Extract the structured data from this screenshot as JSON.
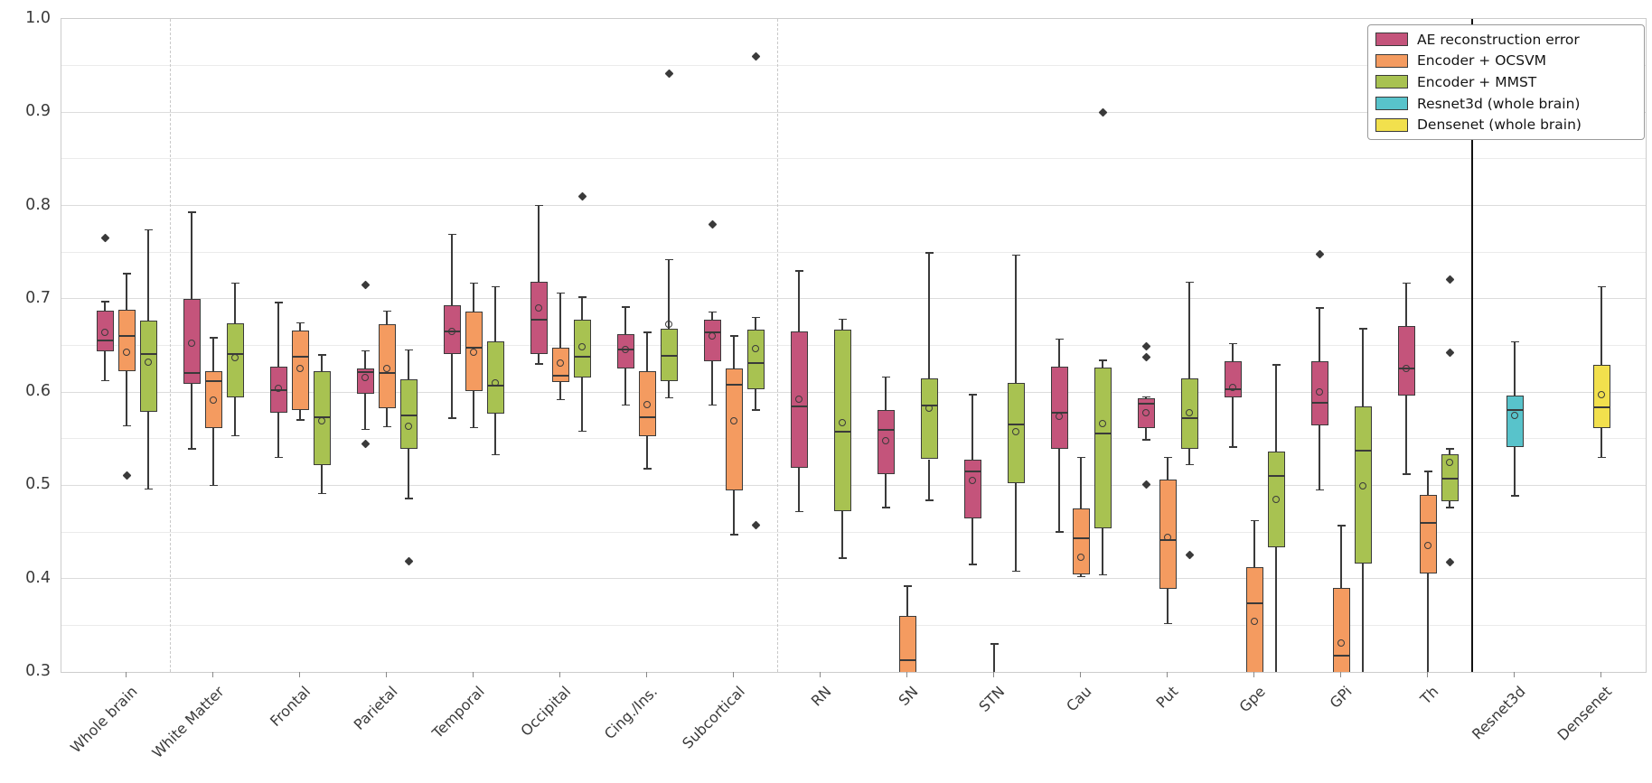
{
  "chart_data": {
    "type": "boxplot",
    "title": "",
    "xlabel": "",
    "ylabel": "",
    "ylim": [
      0.3,
      1.0
    ],
    "yticks": [
      "1.0",
      "0.9",
      "0.8",
      "0.7",
      "0.6",
      "0.5",
      "0.4",
      "0.3"
    ],
    "ytick_values": [
      1.0,
      0.9,
      0.8,
      0.7,
      0.6,
      0.5,
      0.4,
      0.3
    ],
    "minor_grid_step": 0.05,
    "grid": "horizontal",
    "legend_position": "upper right",
    "legend": [
      {
        "key": "ae",
        "label": "AE reconstruction error",
        "color": "#c4547b"
      },
      {
        "key": "ocsvm",
        "label": "Encoder + OCSVM",
        "color": "#f49b60"
      },
      {
        "key": "mmst",
        "label": "Encoder + MMST",
        "color": "#a8c251"
      },
      {
        "key": "resnet",
        "label": "Resnet3d (whole brain)",
        "color": "#58c3cb"
      },
      {
        "key": "densenet",
        "label": "Densenet (whole brain)",
        "color": "#f2e04d"
      }
    ],
    "separators": [
      {
        "after_index": 0,
        "style": "dashed"
      },
      {
        "after_index": 7,
        "style": "dashed"
      },
      {
        "after_index": 15,
        "style": "solid"
      }
    ],
    "categories": [
      "Whole brain",
      "White Matter",
      "Frontal",
      "Parietal",
      "Temporal",
      "Occipital",
      "Cing./Ins.",
      "Subcortical",
      "RN",
      "SN",
      "STN",
      "Cau",
      "Put",
      "Gpe",
      "GPi",
      "Th",
      "Resnet3d",
      "Densenet"
    ],
    "groups": [
      {
        "label": "Whole brain",
        "boxes": [
          {
            "series": "ae",
            "whislo": 0.612,
            "q1": 0.644,
            "med": 0.655,
            "q3": 0.687,
            "whishi": 0.697,
            "mean": 0.664,
            "fliers": [
              0.765
            ]
          },
          {
            "series": "ocsvm",
            "whislo": 0.564,
            "q1": 0.622,
            "med": 0.66,
            "q3": 0.688,
            "whishi": 0.727,
            "mean": 0.643,
            "fliers": [
              0.511
            ]
          },
          {
            "series": "mmst",
            "whislo": 0.496,
            "q1": 0.579,
            "med": 0.641,
            "q3": 0.677,
            "whishi": 0.774,
            "mean": 0.632,
            "fliers": []
          }
        ]
      },
      {
        "label": "White Matter",
        "boxes": [
          {
            "series": "ae",
            "whislo": 0.539,
            "q1": 0.609,
            "med": 0.62,
            "q3": 0.7,
            "whishi": 0.793,
            "mean": 0.652,
            "fliers": []
          },
          {
            "series": "ocsvm",
            "whislo": 0.5,
            "q1": 0.561,
            "med": 0.612,
            "q3": 0.622,
            "whishi": 0.658,
            "mean": 0.591,
            "fliers": []
          },
          {
            "series": "mmst",
            "whislo": 0.553,
            "q1": 0.594,
            "med": 0.641,
            "q3": 0.674,
            "whishi": 0.717,
            "mean": 0.637,
            "fliers": []
          }
        ]
      },
      {
        "label": "Frontal",
        "boxes": [
          {
            "series": "ae",
            "whislo": 0.53,
            "q1": 0.578,
            "med": 0.602,
            "q3": 0.627,
            "whishi": 0.696,
            "mean": 0.604,
            "fliers": []
          },
          {
            "series": "ocsvm",
            "whislo": 0.57,
            "q1": 0.581,
            "med": 0.638,
            "q3": 0.666,
            "whishi": 0.674,
            "mean": 0.625,
            "fliers": []
          },
          {
            "series": "mmst",
            "whislo": 0.491,
            "q1": 0.522,
            "med": 0.573,
            "q3": 0.622,
            "whishi": 0.64,
            "mean": 0.569,
            "fliers": []
          }
        ]
      },
      {
        "label": "Parietal",
        "boxes": [
          {
            "series": "ae",
            "whislo": 0.56,
            "q1": 0.598,
            "med": 0.621,
            "q3": 0.625,
            "whishi": 0.644,
            "mean": 0.616,
            "fliers": [
              0.715,
              0.544
            ]
          },
          {
            "series": "ocsvm",
            "whislo": 0.563,
            "q1": 0.583,
            "med": 0.62,
            "q3": 0.673,
            "whishi": 0.687,
            "mean": 0.625,
            "fliers": []
          },
          {
            "series": "mmst",
            "whislo": 0.486,
            "q1": 0.539,
            "med": 0.575,
            "q3": 0.614,
            "whishi": 0.645,
            "mean": 0.563,
            "fliers": [
              0.419
            ]
          }
        ]
      },
      {
        "label": "Temporal",
        "boxes": [
          {
            "series": "ae",
            "whislo": 0.572,
            "q1": 0.641,
            "med": 0.665,
            "q3": 0.693,
            "whishi": 0.769,
            "mean": 0.665,
            "fliers": []
          },
          {
            "series": "ocsvm",
            "whislo": 0.562,
            "q1": 0.601,
            "med": 0.648,
            "q3": 0.686,
            "whishi": 0.717,
            "mean": 0.643,
            "fliers": []
          },
          {
            "series": "mmst",
            "whislo": 0.533,
            "q1": 0.577,
            "med": 0.607,
            "q3": 0.654,
            "whishi": 0.713,
            "mean": 0.61,
            "fliers": []
          }
        ]
      },
      {
        "label": "Occipital",
        "boxes": [
          {
            "series": "ae",
            "whislo": 0.63,
            "q1": 0.641,
            "med": 0.678,
            "q3": 0.718,
            "whishi": 0.8,
            "mean": 0.69,
            "fliers": []
          },
          {
            "series": "ocsvm",
            "whislo": 0.592,
            "q1": 0.611,
            "med": 0.618,
            "q3": 0.648,
            "whishi": 0.706,
            "mean": 0.631,
            "fliers": []
          },
          {
            "series": "mmst",
            "whislo": 0.558,
            "q1": 0.616,
            "med": 0.638,
            "q3": 0.678,
            "whishi": 0.702,
            "mean": 0.649,
            "fliers": [
              0.81
            ]
          }
        ]
      },
      {
        "label": "Cing./Ins.",
        "boxes": [
          {
            "series": "ae",
            "whislo": 0.586,
            "q1": 0.625,
            "med": 0.646,
            "q3": 0.662,
            "whishi": 0.691,
            "mean": 0.646,
            "fliers": []
          },
          {
            "series": "ocsvm",
            "whislo": 0.518,
            "q1": 0.553,
            "med": 0.573,
            "q3": 0.622,
            "whishi": 0.664,
            "mean": 0.587,
            "fliers": []
          },
          {
            "series": "mmst",
            "whislo": 0.594,
            "q1": 0.612,
            "med": 0.639,
            "q3": 0.668,
            "whishi": 0.742,
            "mean": 0.673,
            "fliers": [
              0.941
            ]
          }
        ]
      },
      {
        "label": "Subcortical",
        "boxes": [
          {
            "series": "ae",
            "whislo": 0.586,
            "q1": 0.633,
            "med": 0.664,
            "q3": 0.678,
            "whishi": 0.686,
            "mean": 0.66,
            "fliers": [
              0.78
            ]
          },
          {
            "series": "ocsvm",
            "whislo": 0.447,
            "q1": 0.495,
            "med": 0.608,
            "q3": 0.625,
            "whishi": 0.66,
            "mean": 0.569,
            "fliers": []
          },
          {
            "series": "mmst",
            "whislo": 0.581,
            "q1": 0.603,
            "med": 0.631,
            "q3": 0.667,
            "whishi": 0.68,
            "mean": 0.647,
            "fliers": [
              0.96,
              0.457
            ]
          }
        ]
      },
      {
        "label": "RN",
        "boxes": [
          {
            "series": "ae",
            "whislo": 0.472,
            "q1": 0.519,
            "med": 0.585,
            "q3": 0.665,
            "whishi": 0.73,
            "mean": 0.592,
            "fliers": []
          },
          {
            "series": "mmst",
            "whislo": 0.422,
            "q1": 0.472,
            "med": 0.558,
            "q3": 0.667,
            "whishi": 0.678,
            "mean": 0.567,
            "fliers": []
          }
        ]
      },
      {
        "label": "SN",
        "boxes": [
          {
            "series": "ae",
            "whislo": 0.476,
            "q1": 0.512,
            "med": 0.559,
            "q3": 0.581,
            "whishi": 0.616,
            "mean": 0.548,
            "fliers": []
          },
          {
            "series": "ocsvm",
            "whislo": 0.3,
            "q1": 0.3,
            "med": 0.313,
            "q3": 0.36,
            "whishi": 0.392,
            "mean": null,
            "fliers": [],
            "clip_low": true
          },
          {
            "series": "mmst",
            "whislo": 0.484,
            "q1": 0.528,
            "med": 0.586,
            "q3": 0.615,
            "whishi": 0.749,
            "mean": 0.583,
            "fliers": []
          }
        ]
      },
      {
        "label": "STN",
        "boxes": [
          {
            "series": "ae",
            "whislo": 0.415,
            "q1": 0.465,
            "med": 0.515,
            "q3": 0.528,
            "whishi": 0.597,
            "mean": 0.505,
            "fliers": []
          },
          {
            "series": "ocsvm",
            "whislo": 0.3,
            "q1": 0.3,
            "med": 0.3,
            "q3": 0.3,
            "whishi": 0.33,
            "mean": null,
            "fliers": [],
            "clip_low": true,
            "no_box": true
          },
          {
            "series": "mmst",
            "whislo": 0.408,
            "q1": 0.502,
            "med": 0.565,
            "q3": 0.61,
            "whishi": 0.747,
            "mean": 0.558,
            "fliers": []
          }
        ]
      },
      {
        "label": "Cau",
        "boxes": [
          {
            "series": "ae",
            "whislo": 0.45,
            "q1": 0.539,
            "med": 0.578,
            "q3": 0.627,
            "whishi": 0.657,
            "mean": 0.574,
            "fliers": []
          },
          {
            "series": "ocsvm",
            "whislo": 0.402,
            "q1": 0.405,
            "med": 0.443,
            "q3": 0.475,
            "whishi": 0.53,
            "mean": 0.423,
            "fliers": []
          },
          {
            "series": "mmst",
            "whislo": 0.404,
            "q1": 0.454,
            "med": 0.556,
            "q3": 0.626,
            "whishi": 0.634,
            "mean": 0.566,
            "fliers": [
              0.9
            ]
          }
        ]
      },
      {
        "label": "Put",
        "boxes": [
          {
            "series": "ae",
            "whislo": 0.549,
            "q1": 0.561,
            "med": 0.588,
            "q3": 0.593,
            "whishi": 0.595,
            "mean": 0.578,
            "fliers": [
              0.649,
              0.637,
              0.501
            ]
          },
          {
            "series": "ocsvm",
            "whislo": 0.352,
            "q1": 0.389,
            "med": 0.441,
            "q3": 0.506,
            "whishi": 0.53,
            "mean": 0.444,
            "fliers": []
          },
          {
            "series": "mmst",
            "whislo": 0.522,
            "q1": 0.539,
            "med": 0.572,
            "q3": 0.615,
            "whishi": 0.718,
            "mean": 0.578,
            "fliers": [
              0.425
            ]
          }
        ]
      },
      {
        "label": "Gpe",
        "boxes": [
          {
            "series": "ae",
            "whislo": 0.541,
            "q1": 0.594,
            "med": 0.603,
            "q3": 0.633,
            "whishi": 0.652,
            "mean": 0.605,
            "fliers": []
          },
          {
            "series": "ocsvm",
            "whislo": 0.3,
            "q1": 0.3,
            "med": 0.374,
            "q3": 0.412,
            "whishi": 0.462,
            "mean": 0.354,
            "fliers": [],
            "clip_low": true
          },
          {
            "series": "mmst",
            "whislo": 0.3,
            "q1": 0.434,
            "med": 0.51,
            "q3": 0.536,
            "whishi": 0.629,
            "mean": 0.485,
            "fliers": [],
            "clip_low": true
          }
        ]
      },
      {
        "label": "GPi",
        "boxes": [
          {
            "series": "ae",
            "whislo": 0.495,
            "q1": 0.564,
            "med": 0.589,
            "q3": 0.633,
            "whishi": 0.69,
            "mean": 0.6,
            "fliers": [
              0.748
            ]
          },
          {
            "series": "ocsvm",
            "whislo": 0.3,
            "q1": 0.3,
            "med": 0.317,
            "q3": 0.39,
            "whishi": 0.457,
            "mean": 0.331,
            "fliers": [],
            "clip_low": true
          },
          {
            "series": "mmst",
            "whislo": 0.3,
            "q1": 0.416,
            "med": 0.537,
            "q3": 0.585,
            "whishi": 0.668,
            "mean": 0.499,
            "fliers": [],
            "clip_low": true
          }
        ]
      },
      {
        "label": "Th",
        "boxes": [
          {
            "series": "ae",
            "whislo": 0.512,
            "q1": 0.596,
            "med": 0.625,
            "q3": 0.671,
            "whishi": 0.717,
            "mean": 0.625,
            "fliers": []
          },
          {
            "series": "ocsvm",
            "whislo": 0.3,
            "q1": 0.406,
            "med": 0.46,
            "q3": 0.49,
            "whishi": 0.515,
            "mean": 0.436,
            "fliers": [],
            "clip_low": true
          },
          {
            "series": "mmst",
            "whislo": 0.476,
            "q1": 0.483,
            "med": 0.507,
            "q3": 0.533,
            "whishi": 0.539,
            "mean": 0.525,
            "fliers": [
              0.721,
              0.642,
              0.418
            ]
          }
        ]
      },
      {
        "label": "Resnet3d",
        "boxes": [
          {
            "series": "resnet",
            "whislo": 0.489,
            "q1": 0.541,
            "med": 0.581,
            "q3": 0.596,
            "whishi": 0.654,
            "mean": 0.575,
            "fliers": []
          }
        ]
      },
      {
        "label": "Densenet",
        "boxes": [
          {
            "series": "densenet",
            "whislo": 0.53,
            "q1": 0.561,
            "med": 0.584,
            "q3": 0.629,
            "whishi": 0.713,
            "mean": 0.597,
            "fliers": []
          }
        ]
      }
    ]
  }
}
